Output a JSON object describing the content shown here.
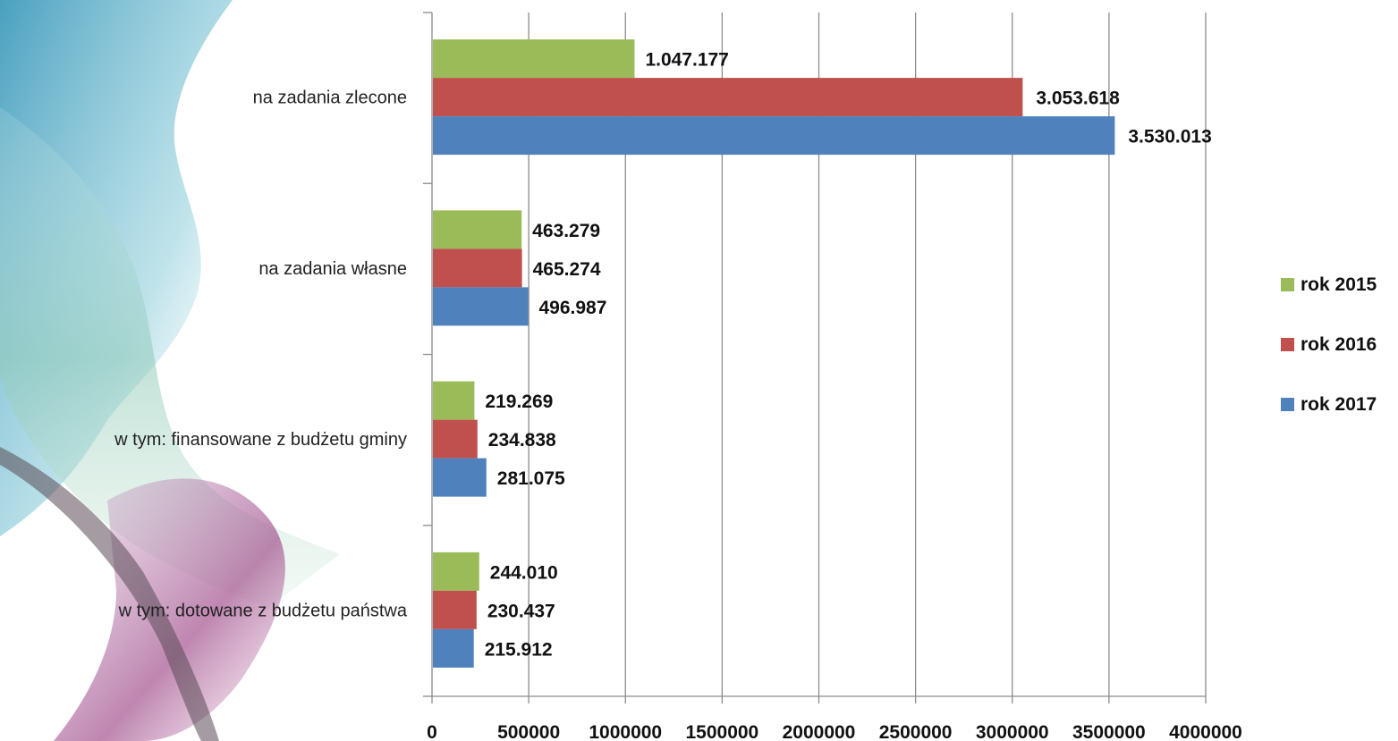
{
  "chart_data": {
    "type": "bar",
    "orientation": "horizontal",
    "categories": [
      "na zadania zlecone",
      "na zadania własne",
      "w tym: finansowane z budżetu gminy",
      "w tym: dotowane z budżetu państwa"
    ],
    "series": [
      {
        "name": "rok 2015",
        "color": "#9bbb59",
        "values": [
          1047177,
          463279,
          219269,
          244010
        ],
        "labels": [
          "1.047.177",
          "463.279",
          "219.269",
          "244.010"
        ]
      },
      {
        "name": "rok 2016",
        "color": "#c0504d",
        "values": [
          3053618,
          465274,
          234838,
          230437
        ],
        "labels": [
          "3.053.618",
          "465.274",
          "234.838",
          "230.437"
        ]
      },
      {
        "name": "rok 2017",
        "color": "#4f81bd",
        "values": [
          3530013,
          496987,
          281075,
          215912
        ],
        "labels": [
          "3.530.013",
          "496.987",
          "281.075",
          "215.912"
        ]
      }
    ],
    "xlim": [
      0,
      4000000
    ],
    "xticks": [
      "0",
      "500000",
      "1000000",
      "1500000",
      "2000000",
      "2500000",
      "3000000",
      "3500000",
      "4000000"
    ],
    "grid": true,
    "legend": "right",
    "title": "",
    "xlabel": "",
    "ylabel": ""
  }
}
